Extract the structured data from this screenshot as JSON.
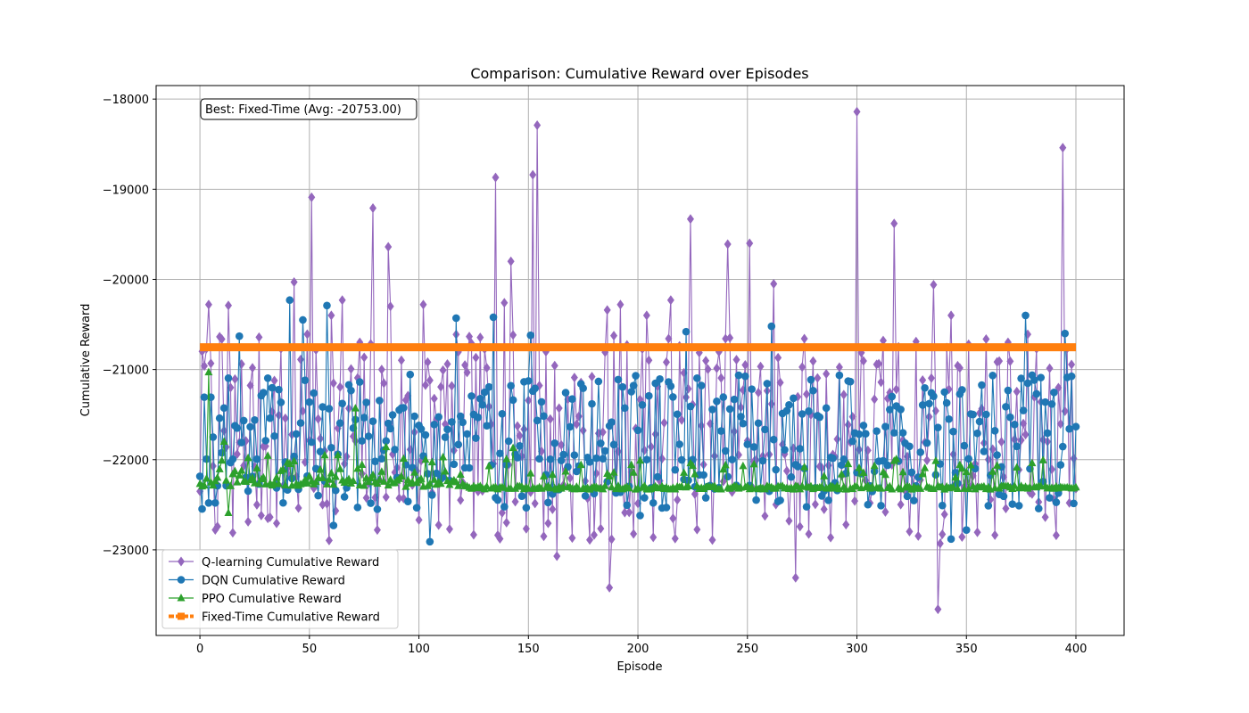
{
  "chart_data": {
    "type": "line",
    "title": "Comparison: Cumulative Reward over Episodes",
    "xlabel": "Episode",
    "ylabel": "Cumulative Reward",
    "xlim": [
      -20,
      422
    ],
    "ylim": [
      -23950,
      -17850
    ],
    "xticks": [
      0,
      50,
      100,
      150,
      200,
      250,
      300,
      350,
      400
    ],
    "yticks": [
      -23000,
      -22000,
      -21000,
      -20000,
      -19000,
      -18000
    ],
    "grid": true,
    "legend_position": "lower-left",
    "annotation": "Best: Fixed-Time (Avg: -20753.00)",
    "x_range": [
      0,
      400
    ],
    "series": [
      {
        "name": "Q-learning Cumulative Reward",
        "color": "#9467bd",
        "marker": "diamond",
        "baseline": -21750,
        "spread": 1150,
        "spikes": [
          [
            2,
            -20960
          ],
          [
            4,
            -20280
          ],
          [
            13,
            -20290
          ],
          [
            14,
            -21200
          ],
          [
            15,
            -22810
          ],
          [
            26,
            -22500
          ],
          [
            43,
            -20030
          ],
          [
            51,
            -19090
          ],
          [
            60,
            -20400
          ],
          [
            65,
            -20230
          ],
          [
            79,
            -19210
          ],
          [
            86,
            -19640
          ],
          [
            87,
            -20300
          ],
          [
            102,
            -20280
          ],
          [
            135,
            -18870
          ],
          [
            139,
            -20260
          ],
          [
            142,
            -19800
          ],
          [
            152,
            -18840
          ],
          [
            154,
            -18290
          ],
          [
            157,
            -22850
          ],
          [
            163,
            -23070
          ],
          [
            178,
            -22890
          ],
          [
            186,
            -20340
          ],
          [
            187,
            -23420
          ],
          [
            192,
            -20280
          ],
          [
            204,
            -20400
          ],
          [
            215,
            -20230
          ],
          [
            224,
            -19330
          ],
          [
            241,
            -19610
          ],
          [
            251,
            -19600
          ],
          [
            262,
            -20050
          ],
          [
            272,
            -23310
          ],
          [
            300,
            -18140
          ],
          [
            317,
            -19380
          ],
          [
            335,
            -20060
          ],
          [
            337,
            -23660
          ],
          [
            338,
            -22930
          ],
          [
            343,
            -20400
          ],
          [
            394,
            -18540
          ]
        ]
      },
      {
        "name": "DQN Cumulative Reward",
        "color": "#1f77b4",
        "marker": "circle",
        "baseline": -21800,
        "spread": 750,
        "spikes": [
          [
            18,
            -20630
          ],
          [
            41,
            -20230
          ],
          [
            47,
            -20450
          ],
          [
            58,
            -20290
          ],
          [
            61,
            -22730
          ],
          [
            105,
            -22910
          ],
          [
            117,
            -20430
          ],
          [
            134,
            -20420
          ],
          [
            151,
            -20620
          ],
          [
            201,
            -22620
          ],
          [
            222,
            -20580
          ],
          [
            261,
            -20520
          ],
          [
            311,
            -22510
          ],
          [
            343,
            -22880
          ],
          [
            350,
            -22780
          ],
          [
            377,
            -20400
          ],
          [
            395,
            -20600
          ]
        ]
      },
      {
        "name": "PPO Cumulative Reward",
        "color": "#2ca02c",
        "marker": "triangle",
        "baseline": -22200,
        "spread": 200,
        "spikes": [
          [
            4,
            -21030
          ],
          [
            11,
            -21800
          ],
          [
            13,
            -22590
          ],
          [
            71,
            -21430
          ],
          [
            85,
            -21860
          ],
          [
            143,
            -21870
          ]
        ]
      },
      {
        "name": "Fixed-Time Cumulative Reward",
        "color": "#ff7f0e",
        "marker": "square",
        "value": -20753
      }
    ]
  }
}
